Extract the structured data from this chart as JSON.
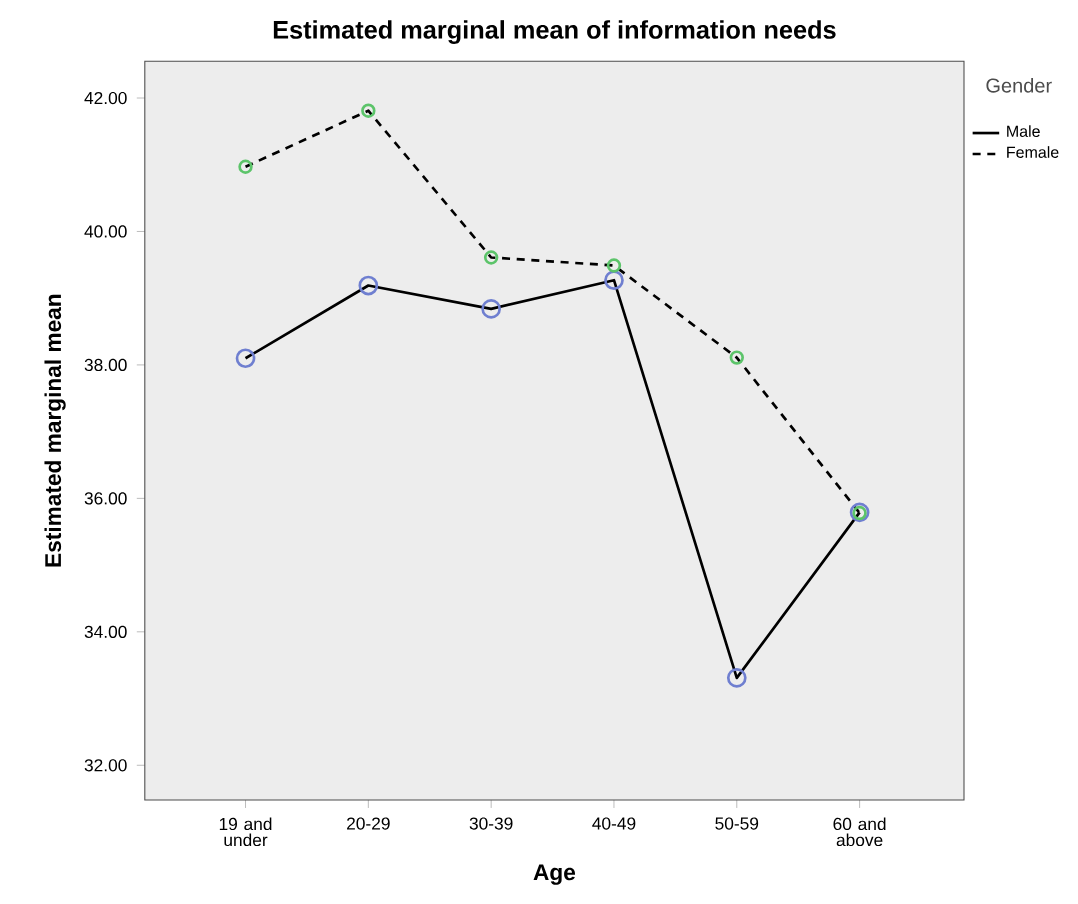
{
  "chart_data": {
    "type": "line",
    "title": "Estimated marginal mean of information needs",
    "xlabel": "Age",
    "ylabel": "Estimated marginal mean",
    "legend_title": "Gender",
    "categories": [
      "19 and under",
      "20-29",
      "30-39",
      "40-49",
      "50-59",
      "60 and above"
    ],
    "series": [
      {
        "name": "Male",
        "color": "#000000",
        "line_style": "solid",
        "values": [
          38.1,
          39.19,
          38.84,
          39.27,
          33.31,
          35.79
        ]
      },
      {
        "name": "Female",
        "color": "#000000",
        "line_style": "dashed",
        "values": [
          40.97,
          41.81,
          39.61,
          39.49,
          38.11,
          35.78
        ]
      }
    ],
    "ylim": [
      31.48,
      42.55
    ],
    "yticks": [
      {
        "value": 32,
        "label": "32.00"
      },
      {
        "value": 34,
        "label": "34.00"
      },
      {
        "value": 36,
        "label": "36.00"
      },
      {
        "value": 38,
        "label": "38.00"
      },
      {
        "value": 40,
        "label": "40.00"
      },
      {
        "value": 42,
        "label": "42.00"
      }
    ],
    "marker": "circle",
    "legend": "top right",
    "grid": false
  }
}
